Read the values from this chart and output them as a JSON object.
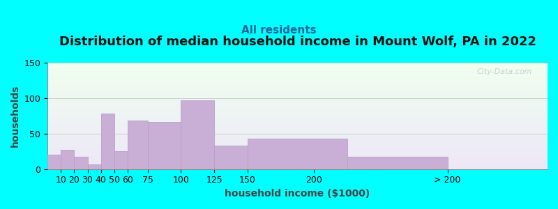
{
  "title": "Distribution of median household income in Mount Wolf, PA in 2022",
  "subtitle": "All residents",
  "xlabel": "household income ($1000)",
  "ylabel": "households",
  "bar_color": "#c9aed6",
  "bar_edge_color": "#b8a0cc",
  "background_color": "#00ffff",
  "plot_bg_top": "#f0fff0",
  "plot_bg_bottom": "#ece8f5",
  "bar_lefts": [
    0,
    10,
    20,
    30,
    40,
    50,
    60,
    75,
    100,
    125,
    150,
    225
  ],
  "bar_widths": [
    10,
    10,
    10,
    10,
    10,
    10,
    15,
    25,
    25,
    25,
    75,
    75
  ],
  "values": [
    20,
    27,
    17,
    7,
    78,
    25,
    68,
    67,
    97,
    33,
    43,
    17
  ],
  "tick_positions": [
    10,
    20,
    30,
    40,
    50,
    60,
    75,
    100,
    125,
    150,
    200,
    300
  ],
  "tick_labels": [
    "10",
    "20",
    "30",
    "40",
    "50",
    "60",
    "75",
    "100",
    "125",
    "150",
    "200",
    "> 200"
  ],
  "xlim": [
    0,
    375
  ],
  "ylim": [
    0,
    150
  ],
  "yticks": [
    0,
    50,
    100,
    150
  ],
  "title_fontsize": 13,
  "subtitle_fontsize": 11,
  "label_fontsize": 10,
  "tick_fontsize": 9,
  "watermark_text": "City-Data.com"
}
